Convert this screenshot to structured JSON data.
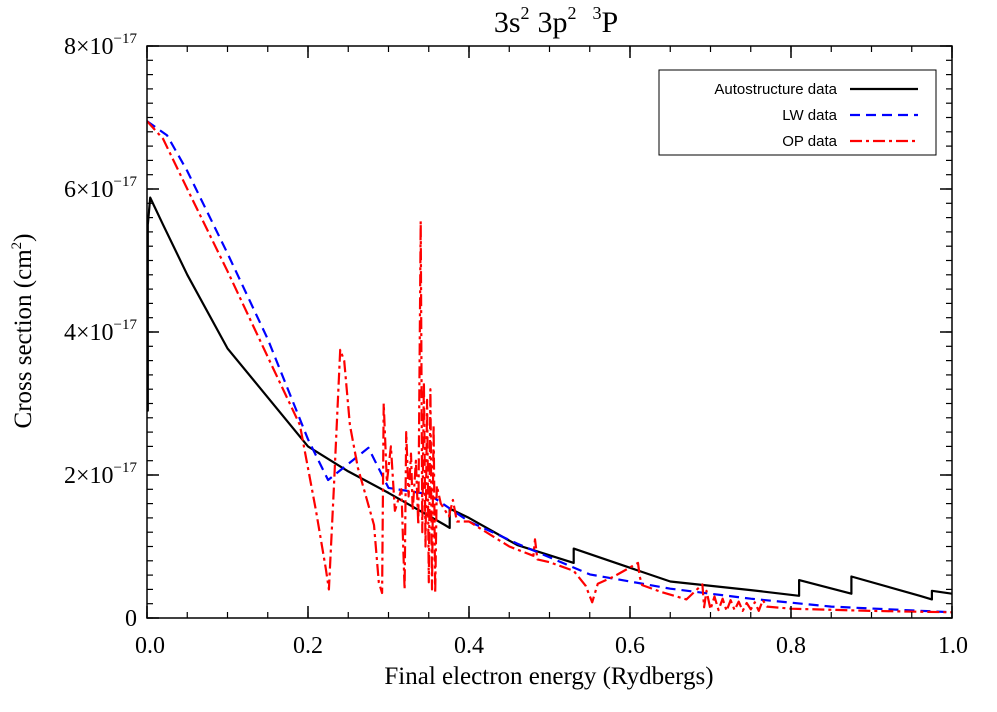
{
  "chart_data": {
    "type": "line",
    "title": {
      "config1": "3s",
      "exp1": "2",
      "config2": "3p",
      "exp2": "2",
      "mult": "3",
      "term": "P"
    },
    "xlabel": "Final electron energy (Rydbergs)",
    "ylabel": {
      "text": "Cross section (cm",
      "exp": "2",
      "close": ")"
    },
    "xlim": [
      0.0,
      1.0
    ],
    "ylim": [
      0,
      8e-17
    ],
    "x_ticks": [
      {
        "value": 0.0,
        "label": "0.0"
      },
      {
        "value": 0.2,
        "label": "0.2"
      },
      {
        "value": 0.4,
        "label": "0.4"
      },
      {
        "value": 0.6,
        "label": "0.6"
      },
      {
        "value": 0.8,
        "label": "0.8"
      },
      {
        "value": 1.0,
        "label": "1.0"
      }
    ],
    "y_ticks": [
      {
        "value": 0,
        "mantissa": "0",
        "exp": ""
      },
      {
        "value": 2e-17,
        "mantissa": "2×10",
        "exp": "−17"
      },
      {
        "value": 4e-17,
        "mantissa": "4×10",
        "exp": "−17"
      },
      {
        "value": 6e-17,
        "mantissa": "6×10",
        "exp": "−17"
      },
      {
        "value": 8e-17,
        "mantissa": "8×10",
        "exp": "−17"
      }
    ],
    "grid": false,
    "legend_position": "top-right",
    "series": [
      {
        "name": "Autostructure data",
        "color": "#000000",
        "style": "solid",
        "x": [
          0.0,
          0.001,
          0.001,
          0.004,
          0.02,
          0.05,
          0.1,
          0.2,
          0.25,
          0.3,
          0.37,
          0.376,
          0.376,
          0.4,
          0.46,
          0.53,
          0.53,
          0.65,
          0.75,
          0.81,
          0.81,
          0.875,
          0.875,
          0.96,
          0.975,
          0.975,
          1.0
        ],
        "y": [
          2.9e-17,
          2.9e-17,
          5.5e-17,
          5.88e-17,
          5.5e-17,
          4.8e-17,
          3.77e-17,
          2.4e-17,
          2.05e-17,
          1.75e-17,
          1.3e-17,
          1.26e-17,
          1.53e-17,
          1.4e-17,
          1.02e-17,
          7.7e-18,
          9.7e-18,
          5.1e-18,
          3.9e-18,
          3.1e-18,
          5.3e-18,
          3.4e-18,
          5.8e-18,
          3.1e-18,
          2.6e-18,
          3.8e-18,
          3.4e-18
        ]
      },
      {
        "name": "LW data",
        "color": "#0000ff",
        "style": "dashed",
        "x": [
          0.0,
          0.025,
          0.05,
          0.1,
          0.15,
          0.2,
          0.225,
          0.275,
          0.3,
          0.35,
          0.4,
          0.46,
          0.55,
          0.65,
          0.75,
          0.85,
          1.0
        ],
        "y": [
          6.95e-17,
          6.75e-17,
          6.25e-17,
          5.1e-17,
          3.9e-17,
          2.5e-17,
          1.93e-17,
          2.38e-17,
          1.82e-17,
          1.73e-17,
          1.35e-17,
          1.04e-17,
          6.1e-18,
          4.1e-18,
          2.7e-18,
          1.6e-18,
          8e-19
        ]
      },
      {
        "name": "OP data",
        "color": "#ff0000",
        "style": "dashdot",
        "x": [
          0.0,
          0.02,
          0.05,
          0.1,
          0.15,
          0.19,
          0.21,
          0.222,
          0.226,
          0.232,
          0.24,
          0.245,
          0.252,
          0.262,
          0.272,
          0.282,
          0.288,
          0.292,
          0.294,
          0.298,
          0.303,
          0.308,
          0.316,
          0.32,
          0.322,
          0.325,
          0.328,
          0.33,
          0.334,
          0.337,
          0.34,
          0.342,
          0.344,
          0.346,
          0.348,
          0.35,
          0.352,
          0.354,
          0.356,
          0.358,
          0.36,
          0.365,
          0.375,
          0.38,
          0.385,
          0.4,
          0.45,
          0.48,
          0.482,
          0.485,
          0.5,
          0.53,
          0.545,
          0.553,
          0.56,
          0.58,
          0.61,
          0.612,
          0.615,
          0.64,
          0.67,
          0.69,
          0.692,
          0.695,
          0.7,
          0.705,
          0.71,
          0.715,
          0.72,
          0.725,
          0.73,
          0.735,
          0.74,
          0.745,
          0.75,
          0.755,
          0.76,
          0.765,
          0.77,
          0.8,
          0.9,
          1.0
        ],
        "y": [
          6.95e-17,
          6.7e-17,
          6e-17,
          4.85e-17,
          3.65e-17,
          2.7e-17,
          1.5e-17,
          7e-18,
          4e-18,
          1.8e-17,
          3.75e-17,
          3.6e-17,
          2.7e-17,
          2.1e-17,
          1.7e-17,
          1.3e-17,
          5e-18,
          3.5e-18,
          3e-17,
          1.9e-17,
          2.4e-17,
          1.5e-17,
          1.8e-17,
          4e-18,
          2.6e-17,
          1.7e-17,
          2.3e-17,
          1.5e-17,
          2.2e-17,
          1.3e-17,
          5.55e-17,
          1.2e-17,
          3.3e-17,
          1e-17,
          3.05e-17,
          5e-18,
          3.2e-17,
          4e-18,
          2.7e-17,
          3.5e-18,
          1.85e-17,
          1.6e-17,
          1.42e-17,
          1.65e-17,
          1.35e-17,
          1.35e-17,
          1e-17,
          8.7e-18,
          1.1e-17,
          8.2e-18,
          7.8e-18,
          6.6e-18,
          4.5e-18,
          2.2e-18,
          4.8e-18,
          5.8e-18,
          7.7e-18,
          5.8e-18,
          4.6e-18,
          3.6e-18,
          2.6e-18,
          4.7e-18,
          1.5e-18,
          3.8e-18,
          1.2e-18,
          3e-18,
          1.1e-18,
          2.7e-18,
          1e-18,
          2.5e-18,
          1.1e-18,
          2.3e-18,
          1e-18,
          2.1e-18,
          1.2e-18,
          2.2e-18,
          1e-18,
          2.5e-18,
          1.6e-18,
          1.3e-18,
          1e-18,
          8e-19
        ]
      }
    ]
  }
}
